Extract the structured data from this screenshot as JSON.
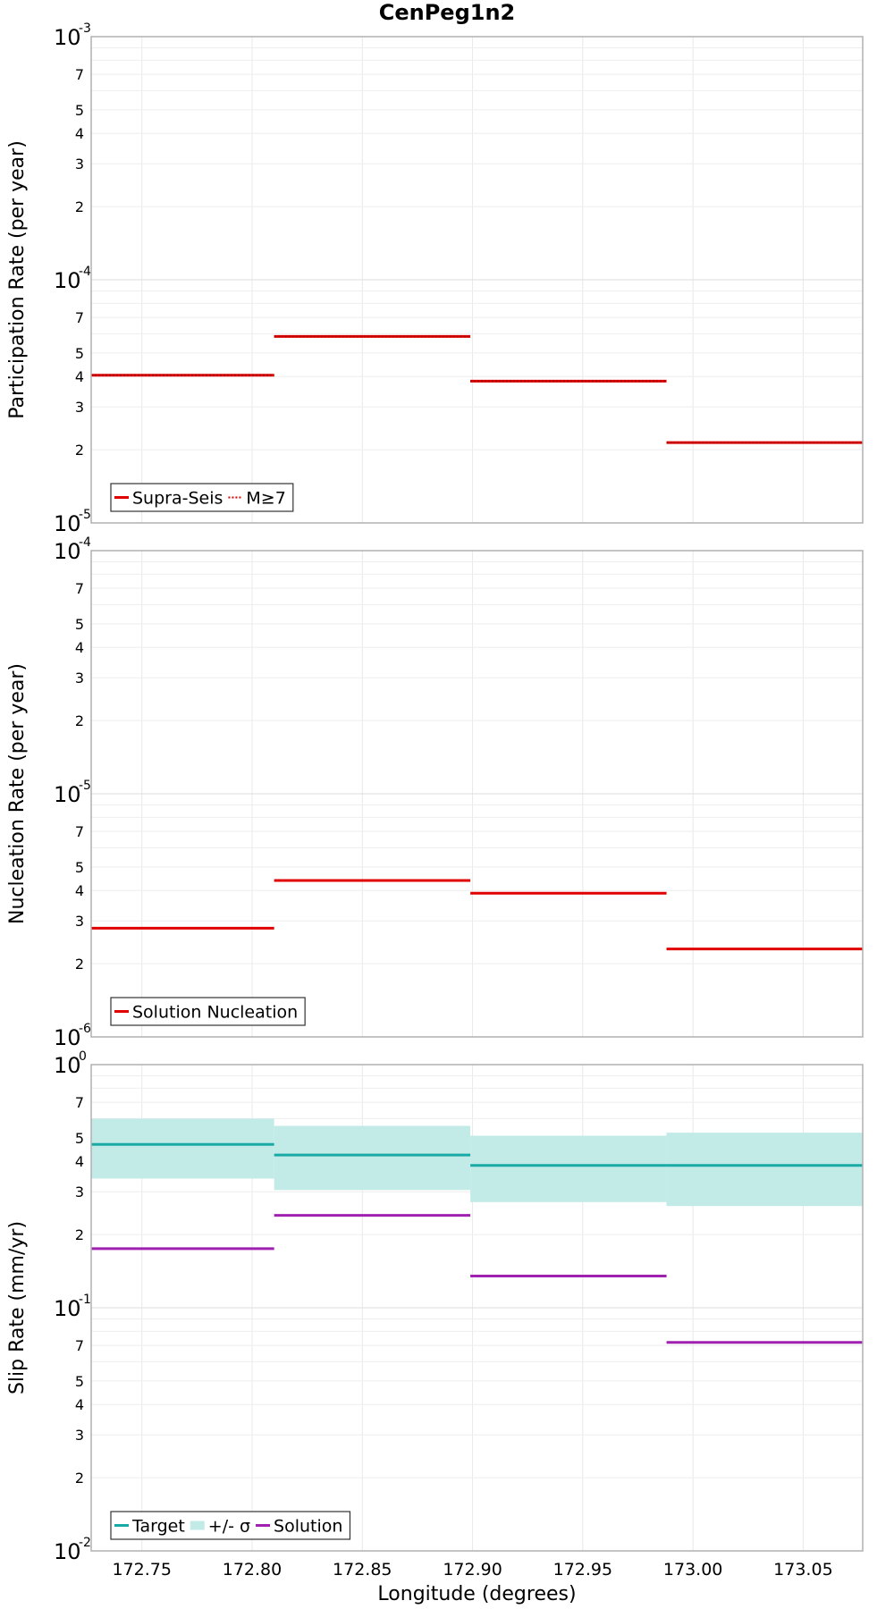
{
  "chart_data": [
    {
      "type": "line",
      "title": "CenPeg1n2",
      "ylabel": "Participation Rate (per year)",
      "xlabel": "",
      "yscale": "log",
      "xlim": [
        172.727,
        173.077
      ],
      "ylim": [
        1e-05,
        0.001
      ],
      "major_ticks": [
        {
          "base": "10",
          "exp": "-5"
        },
        {
          "base": "10",
          "exp": "-4"
        },
        {
          "base": "10",
          "exp": "-3"
        }
      ],
      "minor_tick_labels": [
        "2",
        "3",
        "4",
        "5",
        "7"
      ],
      "x_tick_labels": [],
      "series": [
        {
          "name": "Supra-Seis",
          "color": "#e00000",
          "style": "solid",
          "values": [
            {
              "x0": 172.727,
              "x1": 172.81,
              "y": 4.05e-05
            },
            {
              "x0": 172.81,
              "x1": 172.899,
              "y": 5.85e-05
            },
            {
              "x0": 172.899,
              "x1": 172.988,
              "y": 3.83e-05
            },
            {
              "x0": 172.988,
              "x1": 173.077,
              "y": 2.14e-05
            }
          ]
        },
        {
          "name": "M≥7",
          "color": "#e00000",
          "style": "dotted",
          "values": [
            {
              "x0": 172.727,
              "x1": 172.81,
              "y": 4.05e-05
            },
            {
              "x0": 172.81,
              "x1": 172.899,
              "y": 5.85e-05
            },
            {
              "x0": 172.899,
              "x1": 172.988,
              "y": 3.83e-05
            },
            {
              "x0": 172.988,
              "x1": 173.077,
              "y": 2.14e-05
            }
          ]
        }
      ],
      "legend": {
        "placement": "bottom-left",
        "entries": [
          {
            "label": "Supra-Seis",
            "color": "#e00000",
            "style": "solid"
          },
          {
            "label": "M≥7",
            "color": "#e00000",
            "style": "dotted"
          }
        ]
      }
    },
    {
      "type": "line",
      "title": "",
      "ylabel": "Nucleation Rate (per year)",
      "xlabel": "",
      "yscale": "log",
      "xlim": [
        172.727,
        173.077
      ],
      "ylim": [
        1e-06,
        0.0001
      ],
      "major_ticks": [
        {
          "base": "10",
          "exp": "-6"
        },
        {
          "base": "10",
          "exp": "-5"
        },
        {
          "base": "10",
          "exp": "-4"
        }
      ],
      "minor_tick_labels": [
        "2",
        "3",
        "4",
        "5",
        "7"
      ],
      "x_tick_labels": [],
      "series": [
        {
          "name": "Solution Nucleation",
          "color": "#e00000",
          "style": "solid",
          "values": [
            {
              "x0": 172.727,
              "x1": 172.81,
              "y": 2.8e-06
            },
            {
              "x0": 172.81,
              "x1": 172.899,
              "y": 4.4e-06
            },
            {
              "x0": 172.899,
              "x1": 172.988,
              "y": 3.9e-06
            },
            {
              "x0": 172.988,
              "x1": 173.077,
              "y": 2.3e-06
            }
          ]
        }
      ],
      "legend": {
        "placement": "bottom-left",
        "entries": [
          {
            "label": "Solution Nucleation",
            "color": "#e00000",
            "style": "solid"
          }
        ]
      }
    },
    {
      "type": "line",
      "title": "",
      "ylabel": "Slip Rate (mm/yr)",
      "xlabel": "Longitude (degrees)",
      "yscale": "log",
      "xlim": [
        172.727,
        173.077
      ],
      "ylim": [
        0.01,
        1
      ],
      "major_ticks": [
        {
          "base": "10",
          "exp": "-2"
        },
        {
          "base": "10",
          "exp": "-1"
        },
        {
          "base": "10",
          "exp": "0"
        }
      ],
      "minor_tick_labels": [
        "2",
        "3",
        "4",
        "5",
        "7"
      ],
      "x_tick_labels": [
        "172.75",
        "172.80",
        "172.85",
        "172.90",
        "172.95",
        "173.00",
        "173.05"
      ],
      "band": {
        "name": "+/- σ",
        "color": "#c2ebe8",
        "values": [
          {
            "x0": 172.727,
            "x1": 172.81,
            "low": 0.34,
            "high": 0.6
          },
          {
            "x0": 172.81,
            "x1": 172.899,
            "low": 0.305,
            "high": 0.56
          },
          {
            "x0": 172.899,
            "x1": 172.988,
            "low": 0.272,
            "high": 0.51
          },
          {
            "x0": 172.988,
            "x1": 173.077,
            "low": 0.262,
            "high": 0.525
          }
        ]
      },
      "series": [
        {
          "name": "Target",
          "color": "#1aaaa6",
          "style": "solid",
          "values": [
            {
              "x0": 172.727,
              "x1": 172.81,
              "y": 0.47
            },
            {
              "x0": 172.81,
              "x1": 172.899,
              "y": 0.425
            },
            {
              "x0": 172.899,
              "x1": 172.988,
              "y": 0.385
            },
            {
              "x0": 172.988,
              "x1": 173.077,
              "y": 0.385
            }
          ]
        },
        {
          "name": "Solution",
          "color": "#a020b0",
          "style": "solid",
          "values": [
            {
              "x0": 172.727,
              "x1": 172.81,
              "y": 0.175
            },
            {
              "x0": 172.81,
              "x1": 172.899,
              "y": 0.24
            },
            {
              "x0": 172.899,
              "x1": 172.988,
              "y": 0.135
            },
            {
              "x0": 172.988,
              "x1": 173.077,
              "y": 0.072
            }
          ]
        }
      ],
      "legend": {
        "placement": "bottom-left",
        "entries": [
          {
            "label": "Target",
            "color": "#1aaaa6",
            "style": "solid"
          },
          {
            "label": "+/- σ",
            "color": "#c2ebe8",
            "style": "band"
          },
          {
            "label": "Solution",
            "color": "#a020b0",
            "style": "solid"
          }
        ]
      }
    }
  ]
}
